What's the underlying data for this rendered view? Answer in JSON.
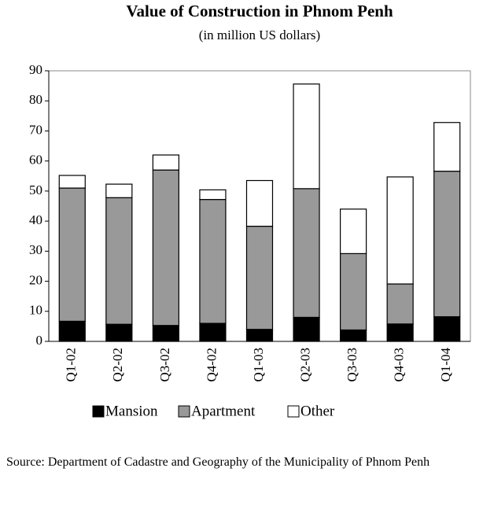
{
  "chart_data": {
    "type": "stacked_bar",
    "title": "Value of Construction in Phnom Penh",
    "subtitle": "(in million US dollars)",
    "categories": [
      "Q1-02",
      "Q2-02",
      "Q3-02",
      "Q4-02",
      "Q1-03",
      "Q2-03",
      "Q3-03",
      "Q4-03",
      "Q1-04"
    ],
    "series": [
      {
        "name": "Mansion",
        "color": "#000000",
        "values": [
          6.7,
          5.7,
          5.3,
          6,
          4,
          8,
          3.8,
          5.8,
          8.2
        ]
      },
      {
        "name": "Apartment",
        "color": "#999999",
        "values": [
          44.3,
          42.1,
          51.7,
          41.2,
          34.3,
          42.8,
          25.4,
          13.3,
          48.4
        ]
      },
      {
        "name": "Other",
        "color": "#ffffff",
        "values": [
          4.2,
          4.5,
          5,
          3.2,
          15.2,
          34.8,
          14.8,
          35.6,
          16.2
        ]
      }
    ],
    "ylim": [
      0,
      90
    ],
    "yticks": [
      0,
      10,
      20,
      30,
      40,
      50,
      60,
      70,
      80,
      90
    ],
    "legend": "bottom",
    "note": "Source: Department of Cadastre and Geography of the Municipality of Phnom Penh"
  }
}
